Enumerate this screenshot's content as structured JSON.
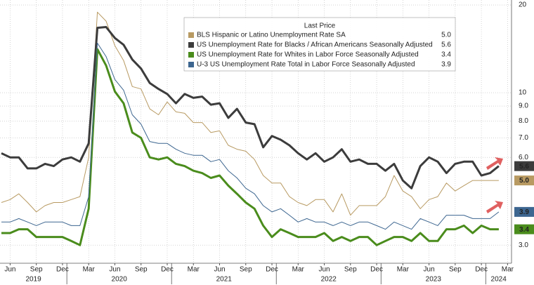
{
  "chart_data": {
    "type": "line",
    "legend_title": "Last Price",
    "legend_position": "top-center",
    "log_y": true,
    "y_axis_side": "right",
    "grid": true,
    "categories": [
      null,
      "Jun",
      null,
      null,
      "Sep",
      null,
      null,
      "Dec",
      null,
      null,
      "Mar",
      null,
      null,
      "Jun",
      null,
      null,
      "Sep",
      null,
      null,
      "Dec",
      null,
      null,
      "Mar",
      null,
      null,
      "Jun",
      null,
      null,
      "Sep",
      null,
      null,
      "Dec",
      null,
      null,
      "Mar",
      null,
      null,
      "Jun",
      null,
      null,
      "Sep",
      null,
      null,
      "Dec",
      null,
      null,
      "Mar",
      null,
      null,
      "Jun",
      null,
      null,
      "Sep",
      null,
      null,
      "Dec",
      null,
      null,
      "Mar"
    ],
    "year_labels": [
      "2019",
      "2020",
      "2021",
      "2022",
      "2023",
      "2024"
    ],
    "ylim": [
      2.6,
      20.8
    ],
    "yticks": [
      {
        "value": 3,
        "label": "3.0"
      },
      {
        "value": 6,
        "label": "6.0"
      },
      {
        "value": 7,
        "label": "7.0"
      },
      {
        "value": 8,
        "label": "8.0"
      },
      {
        "value": 9,
        "label": "9.0"
      },
      10,
      20
    ],
    "series": [
      {
        "name": "BLS Hispanic or Latino Unemployment Rate SA",
        "color": "#b89a62",
        "values": [
          4.2,
          4.3,
          4.5,
          4.2,
          3.9,
          4.1,
          4.2,
          4.2,
          4.3,
          4.4,
          6.0,
          18.9,
          17.6,
          14.5,
          12.9,
          10.5,
          10.3,
          8.8,
          8.4,
          9.3,
          8.6,
          8.5,
          7.9,
          7.9,
          7.3,
          7.4,
          6.6,
          6.4,
          6.3,
          5.9,
          5.2,
          4.9,
          4.9,
          4.4,
          4.2,
          4.1,
          4.3,
          4.3,
          3.9,
          4.5,
          3.8,
          4.1,
          4.1,
          4.1,
          4.4,
          5.2,
          4.6,
          4.4,
          4.0,
          4.3,
          4.4,
          4.9,
          4.6,
          4.8,
          5.0,
          5.0,
          5.0,
          5.0,
          null
        ],
        "value_labels": null
      },
      {
        "name": "US Unemployment Rate for Blacks / African Americans Seasonally Adjusted",
        "color": "#3c3c3c",
        "values": [
          6.2,
          6.0,
          6.0,
          5.5,
          5.5,
          5.7,
          5.6,
          5.9,
          6.0,
          5.8,
          6.7,
          16.7,
          16.8,
          15.4,
          14.6,
          13.0,
          12.1,
          10.8,
          10.3,
          9.9,
          9.2,
          9.9,
          9.6,
          9.7,
          9.1,
          9.2,
          8.2,
          8.8,
          7.9,
          7.8,
          6.5,
          7.1,
          6.9,
          6.6,
          6.2,
          5.9,
          6.2,
          5.8,
          6.0,
          6.4,
          5.8,
          5.9,
          5.7,
          5.7,
          5.4,
          5.7,
          5.0,
          4.7,
          5.6,
          6.0,
          5.8,
          5.3,
          5.7,
          5.8,
          5.8,
          5.2,
          5.3,
          5.6,
          null
        ]
      },
      {
        "name": "US Unemployment Rate for Whites in Labor Force Seasonally Adjusted",
        "color": "#4a8c1c",
        "values": [
          3.3,
          3.3,
          3.4,
          3.4,
          3.2,
          3.2,
          3.2,
          3.2,
          3.1,
          3.0,
          4.0,
          14.1,
          12.4,
          10.1,
          9.2,
          7.3,
          7.0,
          6.0,
          5.9,
          6.0,
          5.7,
          5.6,
          5.4,
          5.3,
          5.1,
          5.2,
          4.8,
          4.5,
          4.2,
          4.0,
          3.5,
          3.2,
          3.4,
          3.3,
          3.2,
          3.2,
          3.2,
          3.3,
          3.1,
          3.2,
          3.1,
          3.2,
          3.2,
          3.0,
          3.1,
          3.2,
          3.2,
          3.1,
          3.3,
          3.1,
          3.1,
          3.4,
          3.4,
          3.5,
          3.3,
          3.5,
          3.4,
          3.4,
          null
        ]
      },
      {
        "name": "U-3 US Unemployment Rate Total in Labor Force Seasonally Adjusted",
        "color": "#3d6690",
        "values": [
          3.6,
          3.6,
          3.7,
          3.6,
          3.5,
          3.6,
          3.6,
          3.6,
          3.5,
          3.5,
          4.4,
          14.8,
          13.3,
          11.1,
          10.2,
          8.4,
          7.8,
          6.8,
          6.7,
          6.7,
          6.4,
          6.2,
          6.1,
          6.1,
          5.8,
          5.9,
          5.4,
          5.1,
          4.7,
          4.5,
          4.1,
          3.9,
          4.0,
          3.8,
          3.6,
          3.7,
          3.6,
          3.6,
          3.5,
          3.6,
          3.5,
          3.6,
          3.6,
          3.5,
          3.4,
          3.6,
          3.5,
          3.4,
          3.7,
          3.6,
          3.5,
          3.8,
          3.8,
          3.8,
          3.7,
          3.7,
          3.7,
          3.9,
          null
        ]
      }
    ],
    "legend_values": [
      "5.0",
      "5.6",
      "3.4",
      "3.9"
    ]
  }
}
